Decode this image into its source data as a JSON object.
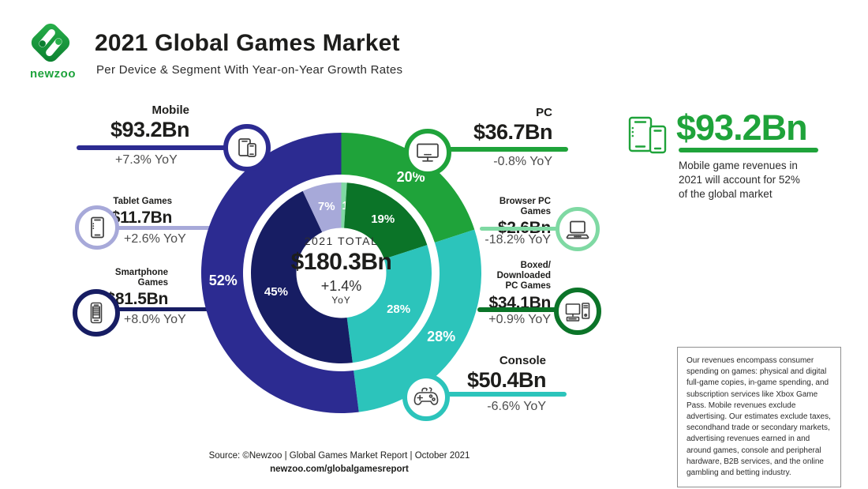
{
  "header": {
    "brand": "newzoo",
    "title": "2021 Global Games Market",
    "subtitle": "Per Device & Segment With Year-on-Year Growth Rates"
  },
  "chart_data": {
    "type": "donut",
    "title": "2021 Global Games Market per Device & Segment",
    "center": {
      "label": "2021 TOTAL",
      "value": "$180.3Bn",
      "growth": "+1.4%",
      "growth_unit": "YoY"
    },
    "total_value_bn": 180.3,
    "legend_position": "callouts-around-donut",
    "outer_ring": [
      {
        "name": "PC",
        "pct": 20,
        "value_bn": 36.7,
        "yoy": "-0.8%",
        "color": "#1fa33a"
      },
      {
        "name": "Console",
        "pct": 28,
        "value_bn": 50.4,
        "yoy": "-6.6%",
        "color": "#2cc4bb"
      },
      {
        "name": "Mobile",
        "pct": 52,
        "value_bn": 93.2,
        "yoy": "+7.3%",
        "color": "#2c2b91"
      }
    ],
    "inner_ring": [
      {
        "name": "Browser PC Games",
        "pct": 1,
        "value_bn": 2.6,
        "yoy": "-18.2%",
        "color": "#7fd9a3"
      },
      {
        "name": "Boxed/Downloaded PC Games",
        "pct": 19,
        "value_bn": 34.1,
        "yoy": "+0.9%",
        "color": "#0b7428"
      },
      {
        "name": "Console",
        "pct": 28,
        "value_bn": 50.4,
        "yoy": "-6.6%",
        "color": "#2cc4bb"
      },
      {
        "name": "Smartphone Games",
        "pct": 45,
        "value_bn": 81.5,
        "yoy": "+8.0%",
        "color": "#171d63"
      },
      {
        "name": "Tablet Games",
        "pct": 7,
        "value_bn": 11.7,
        "yoy": "+2.6%",
        "color": "#a7a9d9"
      }
    ]
  },
  "callouts": {
    "mobile": {
      "title": "Mobile",
      "value": "$93.2Bn",
      "yoy": "+7.3% YoY",
      "color": "#2c2b91",
      "icon": "mobile-devices-icon"
    },
    "tablet": {
      "title": "Tablet Games",
      "value": "$11.7Bn",
      "yoy": "+2.6% YoY",
      "color": "#a7a9d9",
      "icon": "tablet-icon"
    },
    "smartphone": {
      "title": "Smartphone\nGames",
      "value": "$81.5Bn",
      "yoy": "+8.0% YoY",
      "color": "#171d63",
      "icon": "smartphone-icon"
    },
    "pc": {
      "title": "PC",
      "value": "$36.7Bn",
      "yoy": "-0.8% YoY",
      "color": "#1fa33a",
      "icon": "monitor-icon"
    },
    "browser": {
      "title": "Browser PC Games",
      "value": "$2.6Bn",
      "yoy": "-18.2% YoY",
      "color": "#7fd9a3",
      "icon": "laptop-icon"
    },
    "boxed": {
      "title": "Boxed/\nDownloaded\nPC Games",
      "value": "$34.1Bn",
      "yoy": "+0.9% YoY",
      "color": "#0b7428",
      "icon": "desktop-pc-icon"
    },
    "console": {
      "title": "Console",
      "value": "$50.4Bn",
      "yoy": "-6.6% YoY",
      "color": "#2cc4bb",
      "icon": "gamepad-icon"
    }
  },
  "highlight": {
    "value": "$93.2Bn",
    "text": "Mobile game revenues in\n2021 will account for 52%\nof the global market",
    "color": "#1fa33a"
  },
  "disclaimer": "Our revenues encompass consumer spending on games: physical and digital full-game copies, in-game spending, and subscription services like Xbox Game Pass. Mobile revenues exclude advertising. Our estimates exclude taxes, secondhand trade or secondary markets, advertising revenues earned in and around games, console and peripheral hardware, B2B services, and the online gambling and betting industry.",
  "footer": {
    "source": "Source: ©Newzoo | Global Games Market Report | October 2021",
    "url": "newzoo.com/globalgamesreport"
  }
}
